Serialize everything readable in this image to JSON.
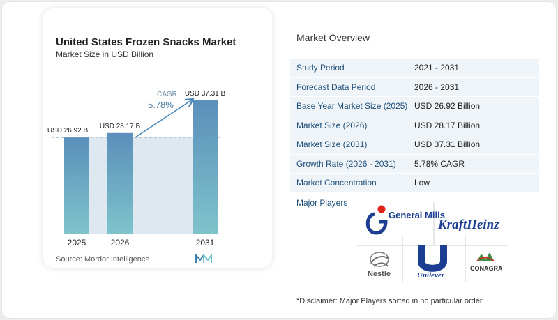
{
  "chart": {
    "title": "United States Frozen Snacks Market",
    "subtitle": "Market Size in USD Billion",
    "source": "Source:  Mordor Intelligence",
    "cagr_label": "CAGR",
    "cagr_value": "5.78%",
    "colors": {
      "bar_top": "#5b8fbb",
      "bar_bottom": "#7fc3cb",
      "band": "#dde8f1",
      "arrow": "#4a86b5",
      "dashed": "#9fb7c9"
    }
  },
  "chart_data": {
    "type": "bar",
    "title": "United States Frozen Snacks Market",
    "subtitle": "Market Size in USD Billion",
    "categories": [
      "2025",
      "2026",
      "2031"
    ],
    "values": [
      26.92,
      28.17,
      37.31
    ],
    "data_labels": [
      "USD 26.92 B",
      "USD 28.17 B",
      "USD 37.31 B"
    ],
    "annotation": {
      "text": "CAGR 5.78%",
      "from": "2026",
      "to": "2031"
    },
    "ylim": [
      0,
      37.31
    ],
    "grid": false
  },
  "overview": {
    "title": "Market Overview",
    "rows": [
      {
        "label": "Study Period",
        "value": "2021 - 2031"
      },
      {
        "label": "Forecast Data Period",
        "value": "2026 - 2031"
      },
      {
        "label": "Base Year Market Size (2025)",
        "value": "USD 26.92 Billion"
      },
      {
        "label": "Market Size (2026)",
        "value": "USD 28.17 Billion"
      },
      {
        "label": "Market Size (2031)",
        "value": "USD 37.31 Billion"
      },
      {
        "label": "Growth Rate (2026 - 2031)",
        "value": "5.78% CAGR"
      },
      {
        "label": "Market Concentration",
        "value": "Low"
      }
    ]
  },
  "players": {
    "title": "Major Players",
    "logos": {
      "general_mills": "General Mills",
      "kraft_heinz": "KraftHeinz",
      "nestle": "Nestle",
      "unilever": "Unilever",
      "conagra": "CONAGRA"
    }
  },
  "disclaimer": "*Disclaimer: Major Players sorted in no particular order"
}
